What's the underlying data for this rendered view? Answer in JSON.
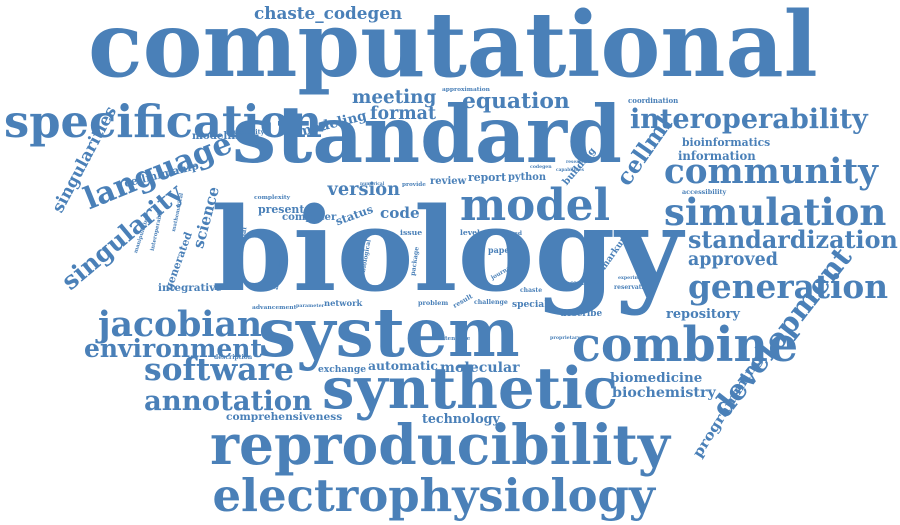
{
  "word_cloud": {
    "color": "#4a80b8",
    "words": [
      {
        "text": "computational",
        "weight": 1.0,
        "orientation": "horizontal"
      },
      {
        "text": "biology",
        "weight": 1.0,
        "orientation": "horizontal"
      },
      {
        "text": "standard",
        "weight": 0.8,
        "orientation": "horizontal"
      },
      {
        "text": "system",
        "weight": 0.7,
        "orientation": "horizontal"
      },
      {
        "text": "synthetic",
        "weight": 0.6,
        "orientation": "horizontal"
      },
      {
        "text": "reproducibility",
        "weight": 0.6,
        "orientation": "horizontal"
      },
      {
        "text": "electrophysiology",
        "weight": 0.55,
        "orientation": "horizontal"
      },
      {
        "text": "specification",
        "weight": 0.5,
        "orientation": "horizontal"
      },
      {
        "text": "combine",
        "weight": 0.5,
        "orientation": "horizontal"
      },
      {
        "text": "model",
        "weight": 0.45,
        "orientation": "horizontal"
      },
      {
        "text": "development",
        "weight": 0.45,
        "orientation": "vertical"
      },
      {
        "text": "generation",
        "weight": 0.4,
        "orientation": "horizontal"
      },
      {
        "text": "simulation",
        "weight": 0.4,
        "orientation": "horizontal"
      },
      {
        "text": "community",
        "weight": 0.4,
        "orientation": "horizontal"
      },
      {
        "text": "jacobian",
        "weight": 0.35,
        "orientation": "horizontal"
      },
      {
        "text": "language",
        "weight": 0.35,
        "orientation": "horizontal"
      },
      {
        "text": "interoperability",
        "weight": 0.35,
        "orientation": "horizontal"
      },
      {
        "text": "annotation",
        "weight": 0.32,
        "orientation": "horizontal"
      },
      {
        "text": "software",
        "weight": 0.32,
        "orientation": "horizontal"
      },
      {
        "text": "environment",
        "weight": 0.3,
        "orientation": "horizontal"
      },
      {
        "text": "standardization",
        "weight": 0.3,
        "orientation": "horizontal"
      },
      {
        "text": "chaste_codegen",
        "weight": 0.28,
        "orientation": "horizontal"
      },
      {
        "text": "singularity",
        "weight": 0.28,
        "orientation": "vertical"
      },
      {
        "text": "cellml",
        "weight": 0.28,
        "orientation": "vertical"
      },
      {
        "text": "equation",
        "weight": 0.25,
        "orientation": "horizontal"
      },
      {
        "text": "singularities",
        "weight": 0.22,
        "orientation": "vertical"
      },
      {
        "text": "version",
        "weight": 0.22,
        "orientation": "horizontal"
      },
      {
        "text": "meeting",
        "weight": 0.2,
        "orientation": "horizontal"
      },
      {
        "text": "format",
        "weight": 0.2,
        "orientation": "horizontal"
      },
      {
        "text": "science",
        "weight": 0.2,
        "orientation": "vertical"
      },
      {
        "text": "approved",
        "weight": 0.2,
        "orientation": "horizontal"
      },
      {
        "text": "programming",
        "weight": 0.18,
        "orientation": "vertical"
      },
      {
        "text": "code",
        "weight": 0.18,
        "orientation": "horizontal"
      },
      {
        "text": "biomedicine",
        "weight": 0.16,
        "orientation": "horizontal"
      },
      {
        "text": "biochemistry",
        "weight": 0.16,
        "orientation": "horizontal"
      },
      {
        "text": "molecular",
        "weight": 0.15,
        "orientation": "horizontal"
      },
      {
        "text": "automatic",
        "weight": 0.15,
        "orientation": "horizontal"
      },
      {
        "text": "modeling",
        "weight": 0.15,
        "orientation": "horizontal"
      },
      {
        "text": "modelling",
        "weight": 0.14,
        "orientation": "horizontal"
      },
      {
        "text": "information",
        "weight": 0.13,
        "orientation": "horizontal"
      },
      {
        "text": "repository",
        "weight": 0.13,
        "orientation": "horizontal"
      },
      {
        "text": "technology",
        "weight": 0.13,
        "orientation": "horizontal"
      },
      {
        "text": "comprehensiveness",
        "weight": 0.13,
        "orientation": "horizontal"
      },
      {
        "text": "cellmlmanip",
        "weight": 0.13,
        "orientation": "horizontal"
      },
      {
        "text": "bioinformatics",
        "weight": 0.12,
        "orientation": "horizontal"
      },
      {
        "text": "exchange",
        "weight": 0.12,
        "orientation": "horizontal"
      },
      {
        "text": "computer",
        "weight": 0.12,
        "orientation": "horizontal"
      },
      {
        "text": "status",
        "weight": 0.12,
        "orientation": "horizontal"
      },
      {
        "text": "present",
        "weight": 0.12,
        "orientation": "horizontal"
      },
      {
        "text": "report",
        "weight": 0.12,
        "orientation": "horizontal"
      },
      {
        "text": "python",
        "weight": 0.11,
        "orientation": "horizontal"
      },
      {
        "text": "review",
        "weight": 0.11,
        "orientation": "horizontal"
      },
      {
        "text": "generated",
        "weight": 0.12,
        "orientation": "vertical"
      },
      {
        "text": "integrative",
        "weight": 0.11,
        "orientation": "horizontal"
      },
      {
        "text": "describe",
        "weight": 0.11,
        "orientation": "horizontal"
      },
      {
        "text": "special",
        "weight": 0.1,
        "orientation": "horizontal"
      },
      {
        "text": "network",
        "weight": 0.1,
        "orientation": "horizontal"
      },
      {
        "text": "challenge",
        "weight": 0.09,
        "orientation": "horizontal"
      },
      {
        "text": "problem",
        "weight": 0.09,
        "orientation": "horizontal"
      },
      {
        "text": "result",
        "weight": 0.09,
        "orientation": "horizontal"
      },
      {
        "text": "paper",
        "weight": 0.1,
        "orientation": "horizontal"
      },
      {
        "text": "journal",
        "weight": 0.08,
        "orientation": "horizontal"
      },
      {
        "text": "building",
        "weight": 0.1,
        "orientation": "vertical"
      },
      {
        "text": "markup",
        "weight": 0.1,
        "orientation": "vertical"
      },
      {
        "text": "issue",
        "weight": 0.09,
        "orientation": "horizontal"
      },
      {
        "text": "level",
        "weight": 0.09,
        "orientation": "horizontal"
      },
      {
        "text": "hundred",
        "weight": 0.09,
        "orientation": "horizontal"
      },
      {
        "text": "chaste",
        "weight": 0.08,
        "orientation": "horizontal"
      },
      {
        "text": "coordination",
        "weight": 0.07,
        "orientation": "horizontal"
      },
      {
        "text": "accessibility",
        "weight": 0.07,
        "orientation": "horizontal"
      },
      {
        "text": "reservation",
        "weight": 0.07,
        "orientation": "horizontal"
      },
      {
        "text": "overview",
        "weight": 0.07,
        "orientation": "horizontal"
      },
      {
        "text": "advancement",
        "weight": 0.07,
        "orientation": "horizontal"
      },
      {
        "text": "parameter",
        "weight": 0.07,
        "orientation": "horizontal"
      },
      {
        "text": "description",
        "weight": 0.07,
        "orientation": "horizontal"
      },
      {
        "text": "extensible",
        "weight": 0.07,
        "orientation": "horizontal"
      },
      {
        "text": "proprietary",
        "weight": 0.06,
        "orientation": "horizontal"
      },
      {
        "text": "approximation",
        "weight": 0.07,
        "orientation": "horizontal"
      },
      {
        "text": "reusability",
        "weight": 0.08,
        "orientation": "horizontal"
      },
      {
        "text": "complexity",
        "weight": 0.07,
        "orientation": "horizontal"
      },
      {
        "text": "experiment",
        "weight": 0.06,
        "orientation": "horizontal"
      },
      {
        "text": "international",
        "weight": 0.08,
        "orientation": "vertical"
      },
      {
        "text": "addressing",
        "weight": 0.07,
        "orientation": "vertical"
      },
      {
        "text": "interoperable",
        "weight": 0.07,
        "orientation": "vertical"
      },
      {
        "text": "manipulating",
        "weight": 0.06,
        "orientation": "vertical"
      },
      {
        "text": "mathematical",
        "weight": 0.06,
        "orientation": "vertical"
      },
      {
        "text": "biological",
        "weight": 0.06,
        "orientation": "vertical"
      },
      {
        "text": "package",
        "weight": 0.07,
        "orientation": "vertical"
      },
      {
        "text": "researcher",
        "weight": 0.05,
        "orientation": "horizontal"
      },
      {
        "text": "codegen",
        "weight": 0.05,
        "orientation": "horizontal"
      },
      {
        "text": "capabilities",
        "weight": 0.05,
        "orientation": "horizontal"
      },
      {
        "text": "provide",
        "weight": 0.06,
        "orientation": "horizontal"
      },
      {
        "text": "numerical",
        "weight": 0.05,
        "orientation": "horizontal"
      }
    ]
  }
}
